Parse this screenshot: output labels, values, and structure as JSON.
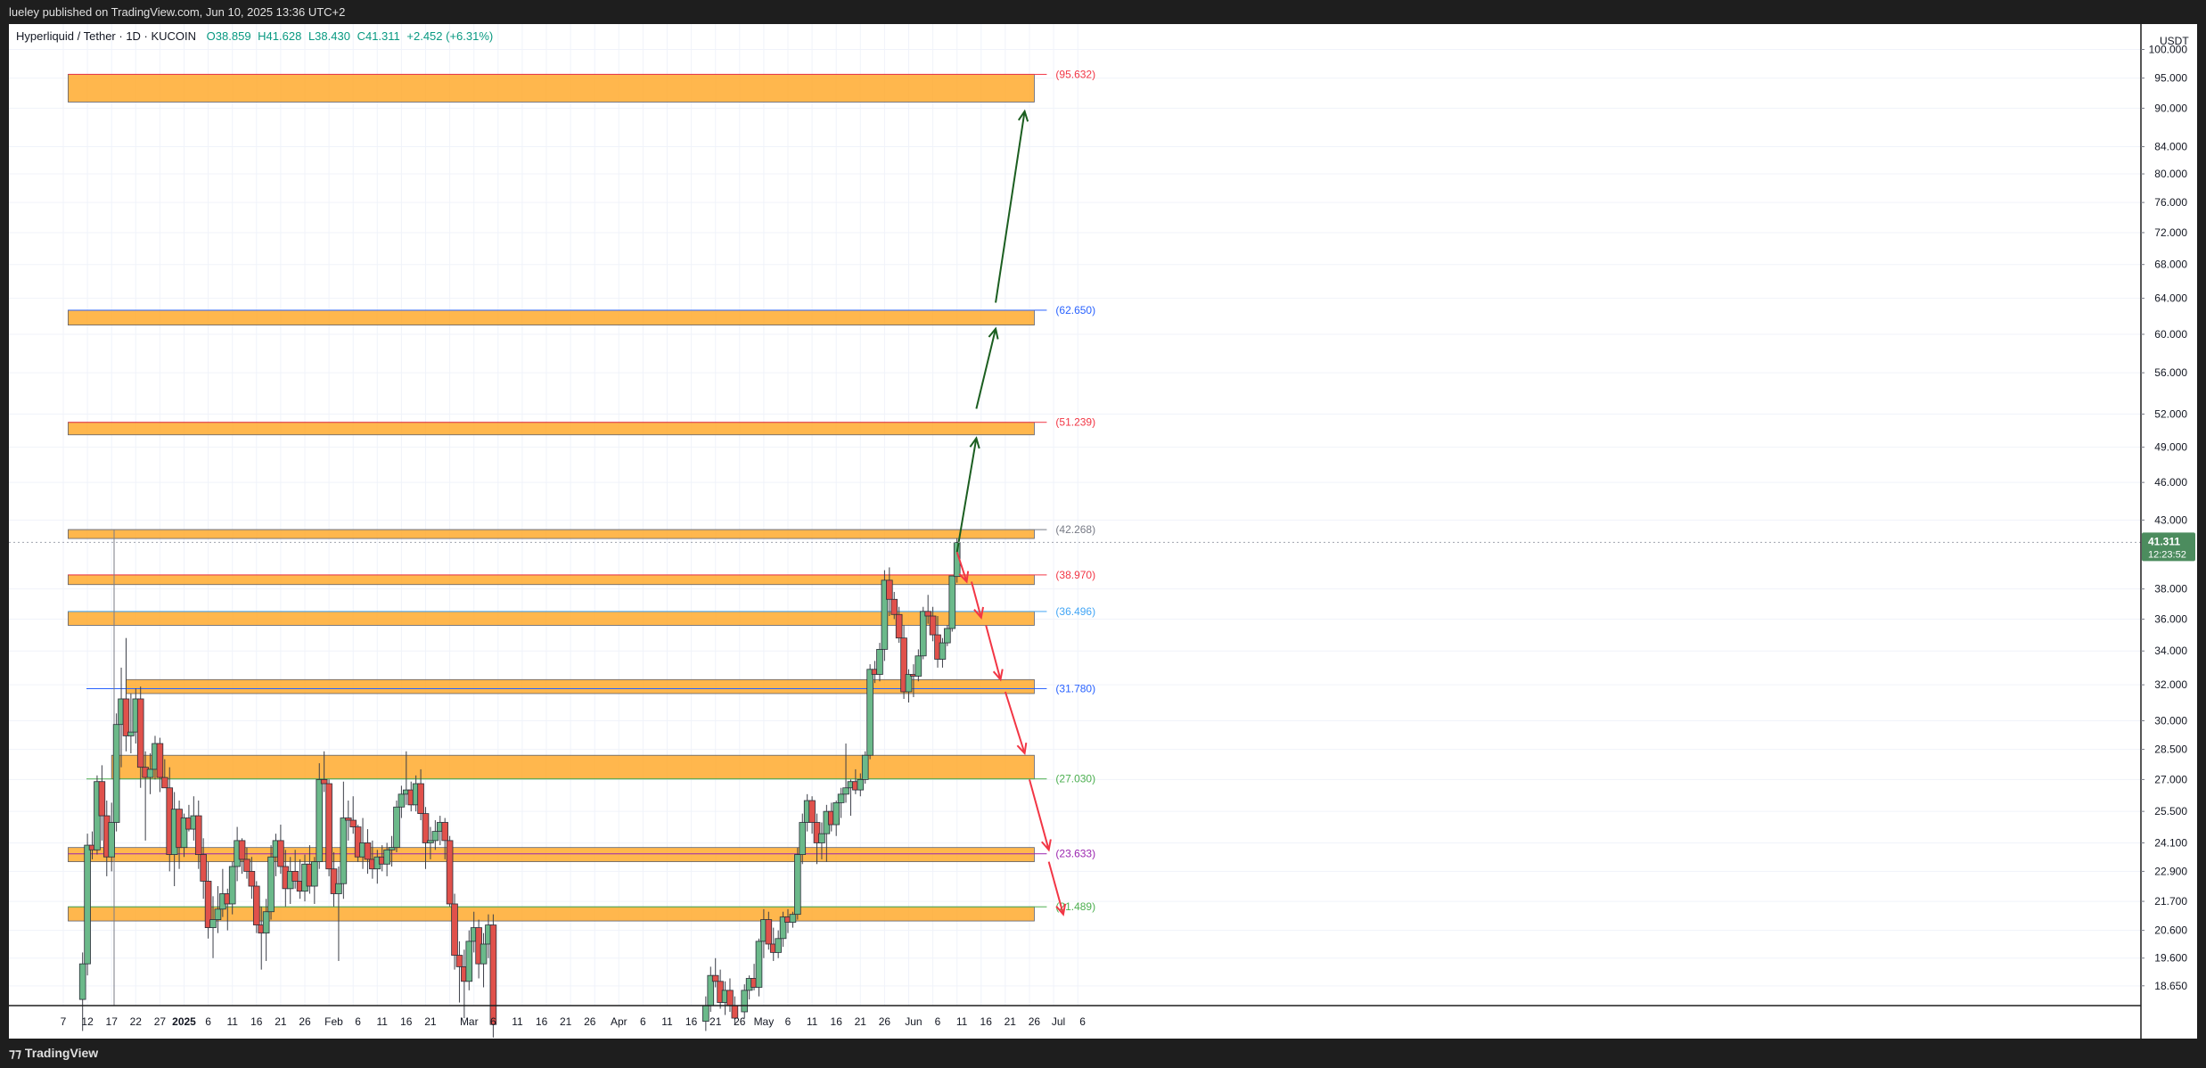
{
  "header": {
    "published_text": "lueley published on TradingView.com, Jun 10, 2025 13:36 UTC+2"
  },
  "legend": {
    "symbol": "Hyperliquid / Tether · 1D · KUCOIN",
    "open": "O38.859",
    "high": "H41.628",
    "low": "L38.430",
    "close": "C41.311",
    "change": "+2.452 (+6.31%)"
  },
  "price_axis": {
    "currency": "USDT",
    "tick_labels": [
      "100.000",
      "95.000",
      "90.000",
      "84.000",
      "80.000",
      "76.000",
      "72.000",
      "68.000",
      "64.000",
      "60.000",
      "56.000",
      "52.000",
      "49.000",
      "46.000",
      "43.000",
      "38.000",
      "36.000",
      "34.000",
      "32.000",
      "30.000",
      "28.500",
      "27.000",
      "25.500",
      "24.100",
      "22.900",
      "21.700",
      "20.600",
      "19.600",
      "18.650"
    ],
    "current_price": "41.311",
    "countdown": "12:23:52"
  },
  "time_axis": {
    "tick_labels": [
      "7",
      "12",
      "17",
      "22",
      "27",
      "2025",
      "6",
      "11",
      "16",
      "21",
      "26",
      "Feb",
      "6",
      "11",
      "16",
      "21",
      "Mar",
      "6",
      "11",
      "16",
      "21",
      "26",
      "Apr",
      "6",
      "11",
      "16",
      "21",
      "26",
      "May",
      "6",
      "11",
      "16",
      "21",
      "26",
      "Jun",
      "6",
      "11",
      "16",
      "21",
      "26",
      "Jul",
      "6"
    ]
  },
  "chart_data": {
    "type": "candlestick",
    "symbol": "Hyperliquid / Tether",
    "interval": "1D",
    "exchange": "KUCOIN",
    "y_scale": "log",
    "ylim": [
      18.0,
      103.0
    ],
    "xlim": [
      "2024-12-07",
      "2025-07-08"
    ],
    "last_candle": {
      "date": "2025-06-10",
      "open": 38.859,
      "high": 41.628,
      "low": 38.43,
      "close": 41.311,
      "change": 2.452,
      "change_pct": 6.31
    },
    "zones": [
      {
        "label": "(95.632)",
        "level": 95.632,
        "low": 91.0,
        "high": 95.632,
        "start": "2024-12-08",
        "end": "2025-06-26",
        "label_color": "#f23645"
      },
      {
        "label": "(62.650)",
        "level": 62.65,
        "low": 61.0,
        "high": 62.65,
        "start": "2024-12-08",
        "end": "2025-06-26",
        "label_color": "#2962ff"
      },
      {
        "label": "(51.239)",
        "level": 51.239,
        "low": 50.1,
        "high": 51.239,
        "start": "2024-12-08",
        "end": "2025-06-26",
        "label_color": "#f23645"
      },
      {
        "label": "(42.268)",
        "level": 42.268,
        "low": 41.6,
        "high": 42.268,
        "start": "2024-12-08",
        "end": "2025-06-26",
        "label_color": "#787b86"
      },
      {
        "label": "(38.970)",
        "level": 38.97,
        "low": 38.3,
        "high": 38.97,
        "start": "2024-12-08",
        "end": "2025-06-26",
        "label_color": "#f23645"
      },
      {
        "label": "(36.496)",
        "level": 36.496,
        "low": 35.6,
        "high": 36.496,
        "start": "2024-12-08",
        "end": "2025-06-26",
        "label_color": "#42a5f5"
      },
      {
        "label": "(31.780)",
        "level": 31.78,
        "low": 31.5,
        "high": 32.3,
        "start": "2024-12-20",
        "end": "2025-06-26",
        "label_color": "#2962ff"
      },
      {
        "label": "(27.030)",
        "level": 27.03,
        "low": 27.03,
        "high": 28.2,
        "start": "2024-12-17",
        "end": "2025-06-26",
        "label_color": "#4caf50"
      },
      {
        "label": "(23.633)",
        "level": 23.633,
        "low": 23.3,
        "high": 23.9,
        "start": "2024-12-08",
        "end": "2025-06-26",
        "label_color": "#9c27b0"
      },
      {
        "label": "(21.489)",
        "level": 21.489,
        "low": 20.95,
        "high": 21.489,
        "start": "2024-12-08",
        "end": "2025-06-26",
        "label_color": "#4caf50"
      }
    ],
    "colors": {
      "zone_fill": "#ffa726",
      "up": "#4caf50",
      "down": "#ef5350",
      "bull_path": "#1b5e20",
      "bear_path": "#f23645",
      "current_price": "#4c8c5e"
    },
    "bull_path": [
      {
        "date": "2025-06-10",
        "price": 40.6
      },
      {
        "date": "2025-06-14",
        "price": 49.8
      },
      {
        "date": "2025-06-14",
        "price": 52.5
      },
      {
        "date": "2025-06-18",
        "price": 60.6
      },
      {
        "date": "2025-06-18",
        "price": 63.5
      },
      {
        "date": "2025-06-24",
        "price": 89.5
      }
    ],
    "bear_path": [
      {
        "date": "2025-06-10",
        "price": 40.6
      },
      {
        "date": "2025-06-12",
        "price": 38.5
      },
      {
        "date": "2025-06-13",
        "price": 38.5
      },
      {
        "date": "2025-06-15",
        "price": 36.1
      },
      {
        "date": "2025-06-16",
        "price": 35.6
      },
      {
        "date": "2025-06-19",
        "price": 32.3
      },
      {
        "date": "2025-06-20",
        "price": 31.6
      },
      {
        "date": "2025-06-24",
        "price": 28.3
      },
      {
        "date": "2025-06-25",
        "price": 27.0
      },
      {
        "date": "2025-06-29",
        "price": 23.8
      },
      {
        "date": "2025-06-29",
        "price": 23.3
      },
      {
        "date": "2025-07-02",
        "price": 21.2
      }
    ],
    "candles": [
      [
        "2024-12-11",
        18.2,
        19.8,
        17.2,
        19.4
      ],
      [
        "2024-12-12",
        19.4,
        24.5,
        19.0,
        24.0
      ],
      [
        "2024-12-13",
        24.0,
        24.6,
        23.4,
        23.8
      ],
      [
        "2024-12-14",
        23.8,
        27.2,
        23.6,
        26.9
      ],
      [
        "2024-12-15",
        26.9,
        27.7,
        24.2,
        25.3
      ],
      [
        "2024-12-16",
        25.3,
        26.0,
        22.7,
        23.5
      ],
      [
        "2024-12-17",
        23.5,
        25.9,
        22.9,
        25.0
      ],
      [
        "2024-12-18",
        25.0,
        30.4,
        24.6,
        29.8
      ],
      [
        "2024-12-19",
        29.8,
        33.0,
        27.6,
        31.2
      ],
      [
        "2024-12-20",
        31.2,
        34.8,
        28.4,
        29.2
      ],
      [
        "2024-12-21",
        29.2,
        31.5,
        28.3,
        29.4
      ],
      [
        "2024-12-22",
        29.4,
        31.8,
        28.8,
        31.2
      ],
      [
        "2024-12-23",
        31.2,
        31.9,
        26.6,
        27.6
      ],
      [
        "2024-12-24",
        27.6,
        28.4,
        24.2,
        27.1
      ],
      [
        "2024-12-25",
        27.1,
        28.3,
        26.3,
        27.5
      ],
      [
        "2024-12-26",
        27.5,
        29.2,
        27.0,
        28.8
      ],
      [
        "2024-12-27",
        28.8,
        29.1,
        26.4,
        27.1
      ],
      [
        "2024-12-28",
        27.1,
        28.0,
        26.6,
        26.6
      ],
      [
        "2024-12-29",
        26.6,
        27.6,
        22.9,
        23.6
      ],
      [
        "2024-12-30",
        23.6,
        26.4,
        22.3,
        25.6
      ],
      [
        "2024-12-31",
        25.6,
        26.0,
        23.0,
        23.9
      ],
      [
        "2025-01-01",
        23.9,
        25.4,
        23.5,
        25.2
      ],
      [
        "2025-01-02",
        25.2,
        25.8,
        24.6,
        24.7
      ],
      [
        "2025-01-03",
        24.7,
        26.2,
        24.2,
        25.3
      ],
      [
        "2025-01-04",
        25.3,
        26.0,
        23.0,
        23.6
      ],
      [
        "2025-01-05",
        23.6,
        24.3,
        21.8,
        22.5
      ],
      [
        "2025-01-06",
        22.5,
        23.3,
        20.3,
        20.7
      ],
      [
        "2025-01-07",
        20.7,
        21.9,
        19.6,
        21.0
      ],
      [
        "2025-01-08",
        21.0,
        22.3,
        20.5,
        21.4
      ],
      [
        "2025-01-09",
        21.4,
        23.0,
        21.1,
        22.0
      ],
      [
        "2025-01-10",
        22.0,
        22.2,
        20.6,
        21.6
      ],
      [
        "2025-01-11",
        21.6,
        23.3,
        21.2,
        23.1
      ],
      [
        "2025-01-12",
        23.1,
        24.8,
        22.5,
        24.2
      ],
      [
        "2025-01-13",
        24.2,
        24.3,
        22.8,
        23.4
      ],
      [
        "2025-01-14",
        23.4,
        23.9,
        22.6,
        22.9
      ],
      [
        "2025-01-15",
        22.9,
        23.5,
        21.8,
        22.3
      ],
      [
        "2025-01-16",
        22.3,
        22.5,
        20.5,
        20.8
      ],
      [
        "2025-01-17",
        20.8,
        21.5,
        19.2,
        20.5
      ],
      [
        "2025-01-18",
        20.5,
        21.8,
        19.5,
        21.3
      ],
      [
        "2025-01-19",
        21.3,
        24.0,
        21.0,
        23.5
      ],
      [
        "2025-01-20",
        23.5,
        24.5,
        22.7,
        24.2
      ],
      [
        "2025-01-21",
        24.2,
        24.9,
        22.8,
        23.1
      ],
      [
        "2025-01-22",
        23.1,
        23.8,
        21.5,
        22.2
      ],
      [
        "2025-01-23",
        22.2,
        23.5,
        21.6,
        22.9
      ],
      [
        "2025-01-24",
        22.9,
        23.8,
        22.2,
        22.5
      ],
      [
        "2025-01-25",
        22.5,
        23.4,
        21.8,
        22.1
      ],
      [
        "2025-01-26",
        22.1,
        23.6,
        21.7,
        23.2
      ],
      [
        "2025-01-27",
        23.2,
        24.0,
        22.0,
        22.3
      ],
      [
        "2025-01-28",
        22.3,
        23.5,
        21.6,
        23.3
      ],
      [
        "2025-01-29",
        23.3,
        27.8,
        23.0,
        27.0
      ],
      [
        "2025-01-30",
        27.0,
        28.4,
        26.4,
        26.8
      ],
      [
        "2025-01-31",
        26.8,
        27.0,
        22.7,
        23.0
      ],
      [
        "2025-02-01",
        23.0,
        23.7,
        21.5,
        22.0
      ],
      [
        "2025-02-02",
        22.0,
        23.1,
        19.5,
        22.4
      ],
      [
        "2025-02-03",
        22.4,
        26.9,
        21.8,
        25.2
      ],
      [
        "2025-02-04",
        25.2,
        26.0,
        24.2,
        25.1
      ],
      [
        "2025-02-05",
        25.1,
        26.2,
        24.5,
        24.8
      ],
      [
        "2025-02-06",
        24.8,
        24.9,
        23.3,
        23.5
      ],
      [
        "2025-02-07",
        23.5,
        25.2,
        23.0,
        24.1
      ],
      [
        "2025-02-08",
        24.1,
        24.7,
        22.8,
        23.4
      ],
      [
        "2025-02-09",
        23.4,
        24.2,
        22.6,
        23.0
      ],
      [
        "2025-02-10",
        23.0,
        23.8,
        22.4,
        23.5
      ],
      [
        "2025-02-11",
        23.5,
        24.0,
        22.9,
        23.2
      ],
      [
        "2025-02-12",
        23.2,
        24.1,
        22.7,
        23.8
      ],
      [
        "2025-02-13",
        23.8,
        24.4,
        23.1,
        23.9
      ],
      [
        "2025-02-14",
        23.9,
        26.0,
        23.7,
        25.7
      ],
      [
        "2025-02-15",
        25.7,
        26.7,
        25.2,
        26.3
      ],
      [
        "2025-02-16",
        26.3,
        28.4,
        25.8,
        26.5
      ],
      [
        "2025-02-17",
        26.5,
        26.9,
        25.5,
        25.8
      ],
      [
        "2025-02-18",
        25.8,
        27.2,
        25.5,
        26.8
      ],
      [
        "2025-02-19",
        26.8,
        27.5,
        25.1,
        25.4
      ],
      [
        "2025-02-20",
        25.4,
        25.7,
        23.0,
        24.1
      ],
      [
        "2025-02-21",
        24.1,
        24.8,
        23.4,
        24.2
      ],
      [
        "2025-02-22",
        24.2,
        25.1,
        23.8,
        24.6
      ],
      [
        "2025-02-23",
        24.6,
        25.3,
        24.0,
        25.0
      ],
      [
        "2025-02-24",
        25.0,
        25.2,
        23.4,
        24.2
      ],
      [
        "2025-02-25",
        24.2,
        24.4,
        21.5,
        21.6
      ],
      [
        "2025-02-26",
        21.6,
        22.0,
        19.2,
        19.7
      ],
      [
        "2025-02-27",
        19.7,
        20.2,
        18.1,
        19.3
      ],
      [
        "2025-02-28",
        19.3,
        19.9,
        17.6,
        18.8
      ],
      [
        "2025-03-01",
        18.8,
        20.6,
        18.5,
        20.2
      ],
      [
        "2025-03-02",
        20.2,
        21.3,
        19.8,
        20.7
      ],
      [
        "2025-03-03",
        20.7,
        21.0,
        18.9,
        19.4
      ],
      [
        "2025-03-04",
        19.4,
        20.5,
        18.6,
        20.1
      ],
      [
        "2025-03-05",
        20.1,
        21.2,
        19.6,
        20.8
      ],
      [
        "2025-03-06",
        20.8,
        21.2,
        17.0,
        17.4
      ],
      [
        "2025-04-19",
        17.5,
        18.3,
        17.2,
        18.0
      ],
      [
        "2025-04-20",
        18.0,
        19.3,
        17.8,
        19.0
      ],
      [
        "2025-04-21",
        19.0,
        19.6,
        18.6,
        18.8
      ],
      [
        "2025-04-22",
        18.8,
        19.2,
        17.9,
        18.1
      ],
      [
        "2025-04-23",
        18.1,
        18.8,
        17.7,
        18.5
      ],
      [
        "2025-04-24",
        18.5,
        18.9,
        17.8,
        18.0
      ],
      [
        "2025-04-25",
        18.0,
        18.3,
        17.4,
        17.6
      ],
      [
        "2025-04-27",
        17.8,
        18.7,
        17.6,
        18.5
      ],
      [
        "2025-04-28",
        18.5,
        19.0,
        18.2,
        18.9
      ],
      [
        "2025-04-29",
        18.9,
        19.4,
        18.5,
        18.6
      ],
      [
        "2025-04-30",
        18.6,
        20.3,
        18.3,
        20.2
      ],
      [
        "2025-05-01",
        20.2,
        21.4,
        19.6,
        21.0
      ],
      [
        "2025-05-02",
        21.0,
        21.3,
        19.9,
        20.1
      ],
      [
        "2025-05-03",
        20.1,
        20.7,
        19.5,
        19.8
      ],
      [
        "2025-05-04",
        19.8,
        20.6,
        19.6,
        20.3
      ],
      [
        "2025-05-05",
        20.3,
        21.3,
        20.0,
        21.1
      ],
      [
        "2025-05-06",
        21.1,
        21.4,
        20.5,
        20.9
      ],
      [
        "2025-05-07",
        20.9,
        21.3,
        20.7,
        21.2
      ],
      [
        "2025-05-08",
        21.2,
        23.9,
        21.0,
        23.6
      ],
      [
        "2025-05-09",
        23.6,
        25.4,
        23.2,
        25.0
      ],
      [
        "2025-05-10",
        25.0,
        26.3,
        24.6,
        26.0
      ],
      [
        "2025-05-11",
        26.0,
        26.2,
        24.5,
        25.0
      ],
      [
        "2025-05-12",
        25.0,
        25.4,
        23.2,
        24.1
      ],
      [
        "2025-05-13",
        24.1,
        25.0,
        23.4,
        24.5
      ],
      [
        "2025-05-14",
        24.5,
        25.8,
        23.3,
        25.5
      ],
      [
        "2025-05-15",
        25.5,
        25.9,
        24.6,
        24.9
      ],
      [
        "2025-05-16",
        24.9,
        26.0,
        24.4,
        25.9
      ],
      [
        "2025-05-17",
        25.9,
        26.6,
        25.2,
        26.3
      ],
      [
        "2025-05-18",
        26.3,
        28.8,
        25.9,
        26.6
      ],
      [
        "2025-05-19",
        26.6,
        27.0,
        25.3,
        26.9
      ],
      [
        "2025-05-20",
        26.9,
        27.5,
        26.3,
        26.5
      ],
      [
        "2025-05-21",
        26.5,
        27.3,
        26.2,
        27.0
      ],
      [
        "2025-05-22",
        27.0,
        28.4,
        26.8,
        28.2
      ],
      [
        "2025-05-23",
        28.2,
        33.2,
        28.0,
        32.9
      ],
      [
        "2025-05-24",
        32.9,
        33.4,
        32.1,
        32.6
      ],
      [
        "2025-05-25",
        32.6,
        34.5,
        32.2,
        34.1
      ],
      [
        "2025-05-26",
        34.1,
        39.3,
        33.4,
        38.6
      ],
      [
        "2025-05-27",
        38.6,
        39.5,
        36.2,
        37.3
      ],
      [
        "2025-05-28",
        37.3,
        37.8,
        36.0,
        36.3
      ],
      [
        "2025-05-29",
        36.3,
        36.8,
        34.5,
        34.8
      ],
      [
        "2025-05-30",
        34.8,
        35.6,
        31.2,
        31.6
      ],
      [
        "2025-05-31",
        31.6,
        32.9,
        31.0,
        32.6
      ],
      [
        "2025-06-01",
        32.6,
        33.2,
        31.3,
        32.5
      ],
      [
        "2025-06-02",
        32.5,
        34.1,
        32.2,
        33.7
      ],
      [
        "2025-06-03",
        33.7,
        36.8,
        33.5,
        36.5
      ],
      [
        "2025-06-04",
        36.5,
        37.6,
        35.7,
        36.2
      ],
      [
        "2025-06-05",
        36.2,
        36.8,
        34.6,
        35.0
      ],
      [
        "2025-06-06",
        35.0,
        36.2,
        33.0,
        33.5
      ],
      [
        "2025-06-07",
        33.5,
        34.8,
        33.0,
        34.5
      ],
      [
        "2025-06-08",
        34.5,
        35.6,
        34.3,
        35.4
      ],
      [
        "2025-06-09",
        35.4,
        38.9,
        35.2,
        38.9
      ],
      [
        "2025-06-10",
        38.859,
        41.628,
        38.43,
        41.311
      ]
    ]
  }
}
